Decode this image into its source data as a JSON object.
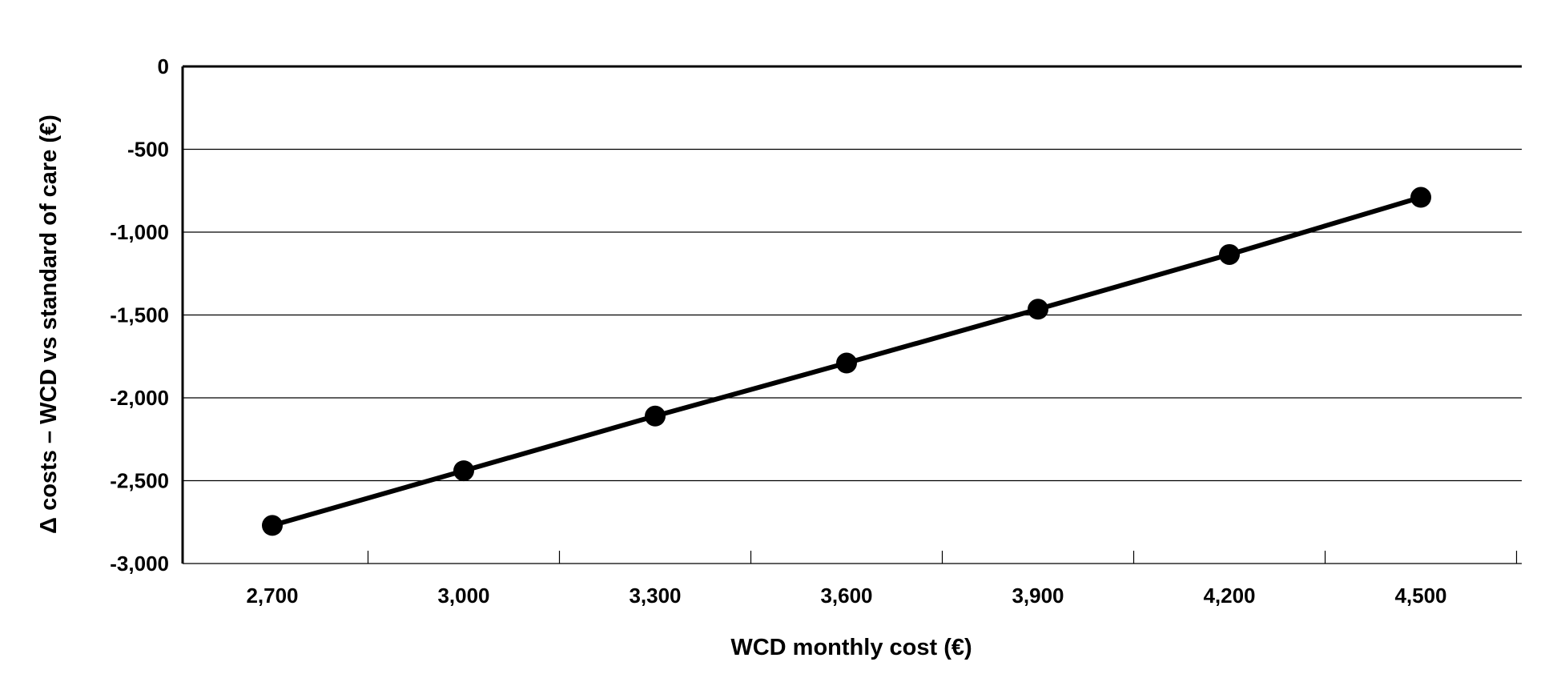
{
  "chart_data": {
    "type": "line",
    "title": "",
    "xlabel": "WCD monthly cost (€)",
    "ylabel": "Δ costs – WCD vs standard of care (€)",
    "x_tick_labels": [
      "2,700",
      "3,000",
      "3,300",
      "3,600",
      "3,900",
      "4,200",
      "4,500"
    ],
    "y_tick_labels": [
      "0",
      "-500",
      "-1,000",
      "-1,500",
      "-2,000",
      "-2,500",
      "-3,000"
    ],
    "y_ticks": [
      0,
      -500,
      -1000,
      -1500,
      -2000,
      -2500,
      -3000
    ],
    "ylim": [
      -3000,
      0
    ],
    "grid": true,
    "series": [
      {
        "x": [
          2700,
          3000,
          3300,
          3600,
          3900,
          4200,
          4500
        ],
        "values": [
          -2770,
          -2440,
          -2110,
          -1790,
          -1465,
          -1135,
          -790
        ]
      }
    ],
    "colors": {
      "line": "#000000",
      "marker": "#000000",
      "grid": "#000000"
    }
  }
}
